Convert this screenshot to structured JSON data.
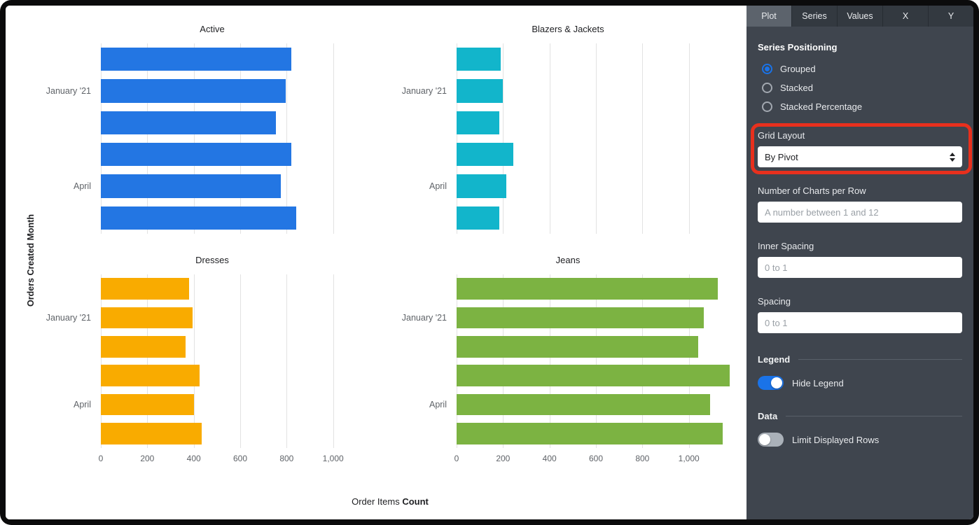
{
  "chart_area": {
    "y_axis_label": "Orders Created Month",
    "x_axis_label_prefix": "Order Items",
    "x_axis_label_bold": "Count"
  },
  "chart_data": [
    {
      "type": "bar",
      "orientation": "horizontal",
      "title": "Active",
      "color": "#2376e3",
      "categories": [
        "",
        "January '21",
        "",
        "",
        "April",
        ""
      ],
      "values": [
        820,
        795,
        755,
        820,
        775,
        840
      ],
      "xlim": [
        0,
        1200
      ],
      "x_ticks": [
        0,
        200,
        400,
        600,
        800,
        1000
      ],
      "x_tick_labels": [
        "0",
        "200",
        "400",
        "600",
        "800",
        "1,000"
      ],
      "show_x_tick_labels": false
    },
    {
      "type": "bar",
      "orientation": "horizontal",
      "title": "Blazers & Jackets",
      "color": "#12b5cb",
      "categories": [
        "",
        "January '21",
        "",
        "",
        "April",
        ""
      ],
      "values": [
        190,
        200,
        185,
        245,
        215,
        185
      ],
      "xlim": [
        0,
        1200
      ],
      "x_ticks": [
        0,
        200,
        400,
        600,
        800,
        1000
      ],
      "x_tick_labels": [
        "0",
        "200",
        "400",
        "600",
        "800",
        "1,000"
      ],
      "show_x_tick_labels": false
    },
    {
      "type": "bar",
      "orientation": "horizontal",
      "title": "Dresses",
      "color": "#f9ab00",
      "categories": [
        "",
        "January '21",
        "",
        "",
        "April",
        ""
      ],
      "values": [
        380,
        395,
        365,
        425,
        400,
        435
      ],
      "xlim": [
        0,
        1200
      ],
      "x_ticks": [
        0,
        200,
        400,
        600,
        800,
        1000
      ],
      "x_tick_labels": [
        "0",
        "200",
        "400",
        "600",
        "800",
        "1,000"
      ],
      "show_x_tick_labels": true
    },
    {
      "type": "bar",
      "orientation": "horizontal",
      "title": "Jeans",
      "color": "#7cb342",
      "categories": [
        "",
        "January '21",
        "",
        "",
        "April",
        ""
      ],
      "values": [
        1125,
        1065,
        1040,
        1175,
        1090,
        1145
      ],
      "xlim": [
        0,
        1200
      ],
      "x_ticks": [
        0,
        200,
        400,
        600,
        800,
        1000
      ],
      "x_tick_labels": [
        "0",
        "200",
        "400",
        "600",
        "800",
        "1,000"
      ],
      "show_x_tick_labels": true
    }
  ],
  "panel": {
    "tabs": [
      {
        "label": "Plot",
        "active": true
      },
      {
        "label": "Series",
        "active": false
      },
      {
        "label": "Values",
        "active": false
      },
      {
        "label": "X",
        "active": false
      },
      {
        "label": "Y",
        "active": false
      }
    ],
    "series_positioning": {
      "title": "Series Positioning",
      "options": [
        {
          "label": "Grouped",
          "selected": true
        },
        {
          "label": "Stacked",
          "selected": false
        },
        {
          "label": "Stacked Percentage",
          "selected": false
        }
      ]
    },
    "grid_layout": {
      "label": "Grid Layout",
      "value": "By Pivot"
    },
    "charts_per_row": {
      "label": "Number of Charts per Row",
      "placeholder": "A number between 1 and 12",
      "value": ""
    },
    "inner_spacing": {
      "label": "Inner Spacing",
      "placeholder": "0 to 1",
      "value": ""
    },
    "spacing": {
      "label": "Spacing",
      "placeholder": "0 to 1",
      "value": ""
    },
    "legend": {
      "title": "Legend",
      "toggle_label": "Hide Legend",
      "enabled": true
    },
    "data": {
      "title": "Data",
      "toggle_label": "Limit Displayed Rows",
      "enabled": false
    }
  },
  "colors": {
    "accent_blue": "#1a73e8",
    "annotation_red": "#e8301d",
    "panel_background": "#3f454e"
  }
}
